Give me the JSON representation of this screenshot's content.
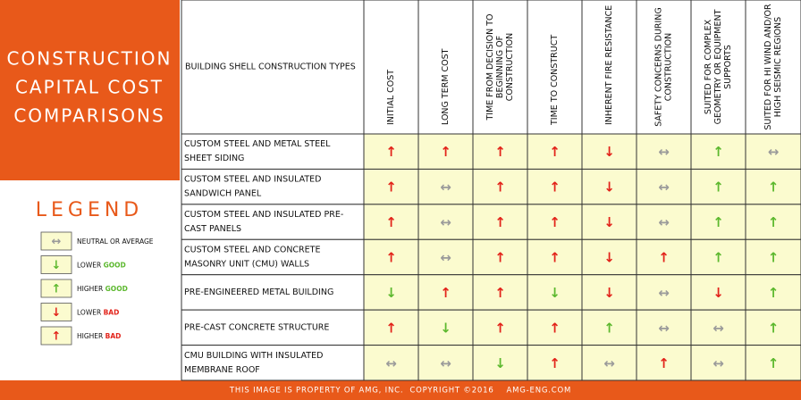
{
  "panel": {
    "title": [
      "CONSTRUCTION",
      "CAPITAL COST",
      "COMPARISONS"
    ]
  },
  "legend": {
    "title": "LEGEND",
    "items": [
      {
        "symbol": "↔",
        "color": "#9a9a9a",
        "label": "NEUTRAL OR AVERAGE"
      },
      {
        "symbol": "↓",
        "color": "#5cb82e",
        "label": "LOWER",
        "emphasis": "GOOD",
        "emphasis_color": "#5cb82e"
      },
      {
        "symbol": "↑",
        "color": "#5cb82e",
        "label": "HIGHER",
        "emphasis": "GOOD",
        "emphasis_color": "#5cb82e"
      },
      {
        "symbol": "↓",
        "color": "#e2231a",
        "label": "LOWER",
        "emphasis": "BAD",
        "emphasis_color": "#e2231a"
      },
      {
        "symbol": "↑",
        "color": "#e2231a",
        "label": "HIGHER",
        "emphasis": "BAD",
        "emphasis_color": "#e2231a"
      }
    ]
  },
  "table": {
    "row_header": "BUILDING SHELL CONSTRUCTION TYPES",
    "columns": [
      [
        "INITIAL COST"
      ],
      [
        "LONG TERM COST"
      ],
      [
        "TIME FROM DECISION TO",
        "BEGINNING OF",
        "CONSTRUCTION"
      ],
      [
        "TIME TO CONSTRUCT"
      ],
      [
        "INHERENT FIRE RESISTANCE"
      ],
      [
        "SAFETY CONCERNS DURING",
        "CONSTRUCTION"
      ],
      [
        "SUITED FOR COMPLEX",
        "GEOMETRY OR EQUIPMENT",
        "SUPPORTS"
      ],
      [
        "SUITED FOR HI WIND AND/OR",
        "HIGH SEISMIC REGIONS"
      ]
    ],
    "rows": [
      {
        "name": [
          "CUSTOM STEEL AND METAL STEEL",
          "SHEET SIDING"
        ],
        "cells": [
          {
            "symbol": "↑",
            "color": "#e2231a"
          },
          {
            "symbol": "↑",
            "color": "#e2231a"
          },
          {
            "symbol": "↑",
            "color": "#e2231a"
          },
          {
            "symbol": "↑",
            "color": "#e2231a"
          },
          {
            "symbol": "↓",
            "color": "#e2231a"
          },
          {
            "symbol": "↔",
            "color": "#9a9a9a"
          },
          {
            "symbol": "↑",
            "color": "#5cb82e"
          },
          {
            "symbol": "↔",
            "color": "#9a9a9a"
          }
        ]
      },
      {
        "name": [
          "CUSTOM STEEL AND INSULATED",
          "SANDWICH PANEL"
        ],
        "cells": [
          {
            "symbol": "↑",
            "color": "#e2231a"
          },
          {
            "symbol": "↔",
            "color": "#9a9a9a"
          },
          {
            "symbol": "↑",
            "color": "#e2231a"
          },
          {
            "symbol": "↑",
            "color": "#e2231a"
          },
          {
            "symbol": "↓",
            "color": "#e2231a"
          },
          {
            "symbol": "↔",
            "color": "#9a9a9a"
          },
          {
            "symbol": "↑",
            "color": "#5cb82e"
          },
          {
            "symbol": "↑",
            "color": "#5cb82e"
          }
        ]
      },
      {
        "name": [
          "CUSTOM STEEL AND INSULATED PRE-",
          "CAST PANELS"
        ],
        "cells": [
          {
            "symbol": "↑",
            "color": "#e2231a"
          },
          {
            "symbol": "↔",
            "color": "#9a9a9a"
          },
          {
            "symbol": "↑",
            "color": "#e2231a"
          },
          {
            "symbol": "↑",
            "color": "#e2231a"
          },
          {
            "symbol": "↓",
            "color": "#e2231a"
          },
          {
            "symbol": "↔",
            "color": "#9a9a9a"
          },
          {
            "symbol": "↑",
            "color": "#5cb82e"
          },
          {
            "symbol": "↑",
            "color": "#5cb82e"
          }
        ]
      },
      {
        "name": [
          "CUSTOM STEEL AND CONCRETE",
          "MASONRY UNIT (CMU) WALLS"
        ],
        "cells": [
          {
            "symbol": "↑",
            "color": "#e2231a"
          },
          {
            "symbol": "↔",
            "color": "#9a9a9a"
          },
          {
            "symbol": "↑",
            "color": "#e2231a"
          },
          {
            "symbol": "↑",
            "color": "#e2231a"
          },
          {
            "symbol": "↓",
            "color": "#e2231a"
          },
          {
            "symbol": "↑",
            "color": "#e2231a"
          },
          {
            "symbol": "↑",
            "color": "#5cb82e"
          },
          {
            "symbol": "↑",
            "color": "#5cb82e"
          }
        ]
      },
      {
        "name": [
          "PRE-ENGINEERED METAL BUILDING"
        ],
        "cells": [
          {
            "symbol": "↓",
            "color": "#5cb82e"
          },
          {
            "symbol": "↑",
            "color": "#e2231a"
          },
          {
            "symbol": "↑",
            "color": "#e2231a"
          },
          {
            "symbol": "↓",
            "color": "#5cb82e"
          },
          {
            "symbol": "↓",
            "color": "#e2231a"
          },
          {
            "symbol": "↔",
            "color": "#9a9a9a"
          },
          {
            "symbol": "↓",
            "color": "#e2231a"
          },
          {
            "symbol": "↑",
            "color": "#5cb82e"
          }
        ]
      },
      {
        "name": [
          "PRE-CAST CONCRETE STRUCTURE"
        ],
        "cells": [
          {
            "symbol": "↑",
            "color": "#e2231a"
          },
          {
            "symbol": "↓",
            "color": "#5cb82e"
          },
          {
            "symbol": "↑",
            "color": "#e2231a"
          },
          {
            "symbol": "↑",
            "color": "#e2231a"
          },
          {
            "symbol": "↑",
            "color": "#5cb82e"
          },
          {
            "symbol": "↔",
            "color": "#9a9a9a"
          },
          {
            "symbol": "↔",
            "color": "#9a9a9a"
          },
          {
            "symbol": "↑",
            "color": "#5cb82e"
          }
        ]
      },
      {
        "name": [
          "CMU BUILDING WITH INSULATED",
          "MEMBRANE ROOF"
        ],
        "cells": [
          {
            "symbol": "↔",
            "color": "#9a9a9a"
          },
          {
            "symbol": "↔",
            "color": "#9a9a9a"
          },
          {
            "symbol": "↓",
            "color": "#5cb82e"
          },
          {
            "symbol": "↑",
            "color": "#e2231a"
          },
          {
            "symbol": "↔",
            "color": "#9a9a9a"
          },
          {
            "symbol": "↑",
            "color": "#e2231a"
          },
          {
            "symbol": "↔",
            "color": "#9a9a9a"
          },
          {
            "symbol": "↑",
            "color": "#5cb82e"
          }
        ]
      }
    ]
  },
  "footer": "THIS IMAGE IS PROPERTY OF AMG, INC.  COPYRIGHT ©2016    AMG-ENG.COM"
}
